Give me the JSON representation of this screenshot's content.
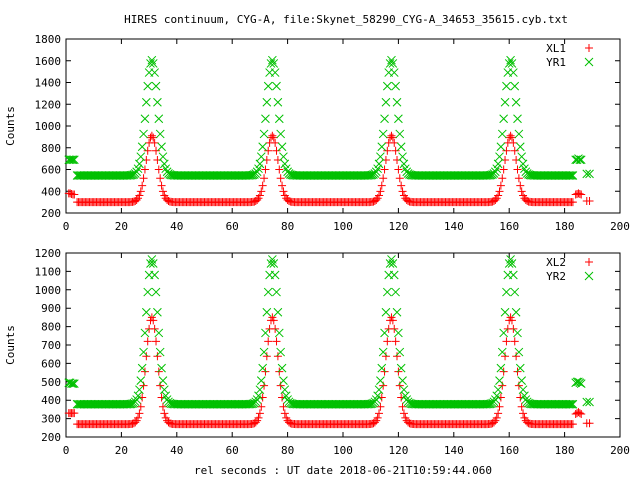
{
  "chart_data": {
    "title": "HIRES continuum, CYG-A, file:Skynet_58290_CYG-A_34653_35615.cyb.txt",
    "xlabel": "rel seconds : UT date 2018-06-21T10:59:44.060",
    "x_tick_labels": [
      "0",
      "20",
      "40",
      "60",
      "80",
      "100",
      "120",
      "140",
      "160",
      "180",
      "200"
    ],
    "peak_centers": [
      31,
      74.5,
      117.5,
      160.5
    ],
    "peak_width": 2.1,
    "sample_step": 0.5,
    "charts": [
      {
        "type": "scatter",
        "ylabel": "Counts",
        "xlim": [
          0,
          200
        ],
        "ylim": [
          200,
          1800
        ],
        "y_tick_labels": [
          "200",
          "400",
          "600",
          "800",
          "1000",
          "1200",
          "1400",
          "1600",
          "1800"
        ],
        "legend": "top-right",
        "grid": false,
        "series": [
          {
            "name": "XL1",
            "color": "#ff0000",
            "marker": "+",
            "baseline": 300,
            "peak": 910,
            "cal_x": [
              1,
              1.5,
              2,
              2.5,
              3,
              184,
              184.5,
              185,
              185.5,
              186,
              188,
              189
            ],
            "cal_y": [
              380,
              380,
              375,
              370,
              370,
              370,
              375,
              380,
              375,
              370,
              310,
              310
            ]
          },
          {
            "name": "YR1",
            "color": "#00c000",
            "marker": "x",
            "baseline": 545,
            "peak": 1605,
            "cal_x": [
              1,
              1.5,
              2,
              2.5,
              3,
              184,
              184.5,
              185,
              185.5,
              186,
              188,
              189
            ],
            "cal_y": [
              690,
              690,
              690,
              690,
              690,
              690,
              690,
              700,
              690,
              690,
              560,
              560
            ]
          }
        ]
      },
      {
        "type": "scatter",
        "ylabel": "Counts",
        "xlim": [
          0,
          200
        ],
        "ylim": [
          200,
          1200
        ],
        "y_tick_labels": [
          "200",
          "300",
          "400",
          "500",
          "600",
          "700",
          "800",
          "900",
          "1000",
          "1100",
          "1200"
        ],
        "legend": "top-right",
        "grid": false,
        "series": [
          {
            "name": "XL2",
            "color": "#ff0000",
            "marker": "+",
            "baseline": 270,
            "peak": 850,
            "cal_x": [
              1,
              1.5,
              2,
              2.5,
              3,
              184,
              184.5,
              185,
              185.5,
              186,
              188,
              189
            ],
            "cal_y": [
              330,
              330,
              330,
              330,
              330,
              325,
              330,
              335,
              330,
              325,
              275,
              275
            ]
          },
          {
            "name": "YR2",
            "color": "#00c000",
            "marker": "x",
            "baseline": 378,
            "peak": 1165,
            "cal_x": [
              1,
              1.5,
              2,
              2.5,
              3,
              184,
              184.5,
              185,
              185.5,
              186,
              188,
              189
            ],
            "cal_y": [
              495,
              495,
              490,
              490,
              490,
              495,
              500,
              500,
              495,
              490,
              390,
              390
            ]
          }
        ]
      }
    ]
  }
}
